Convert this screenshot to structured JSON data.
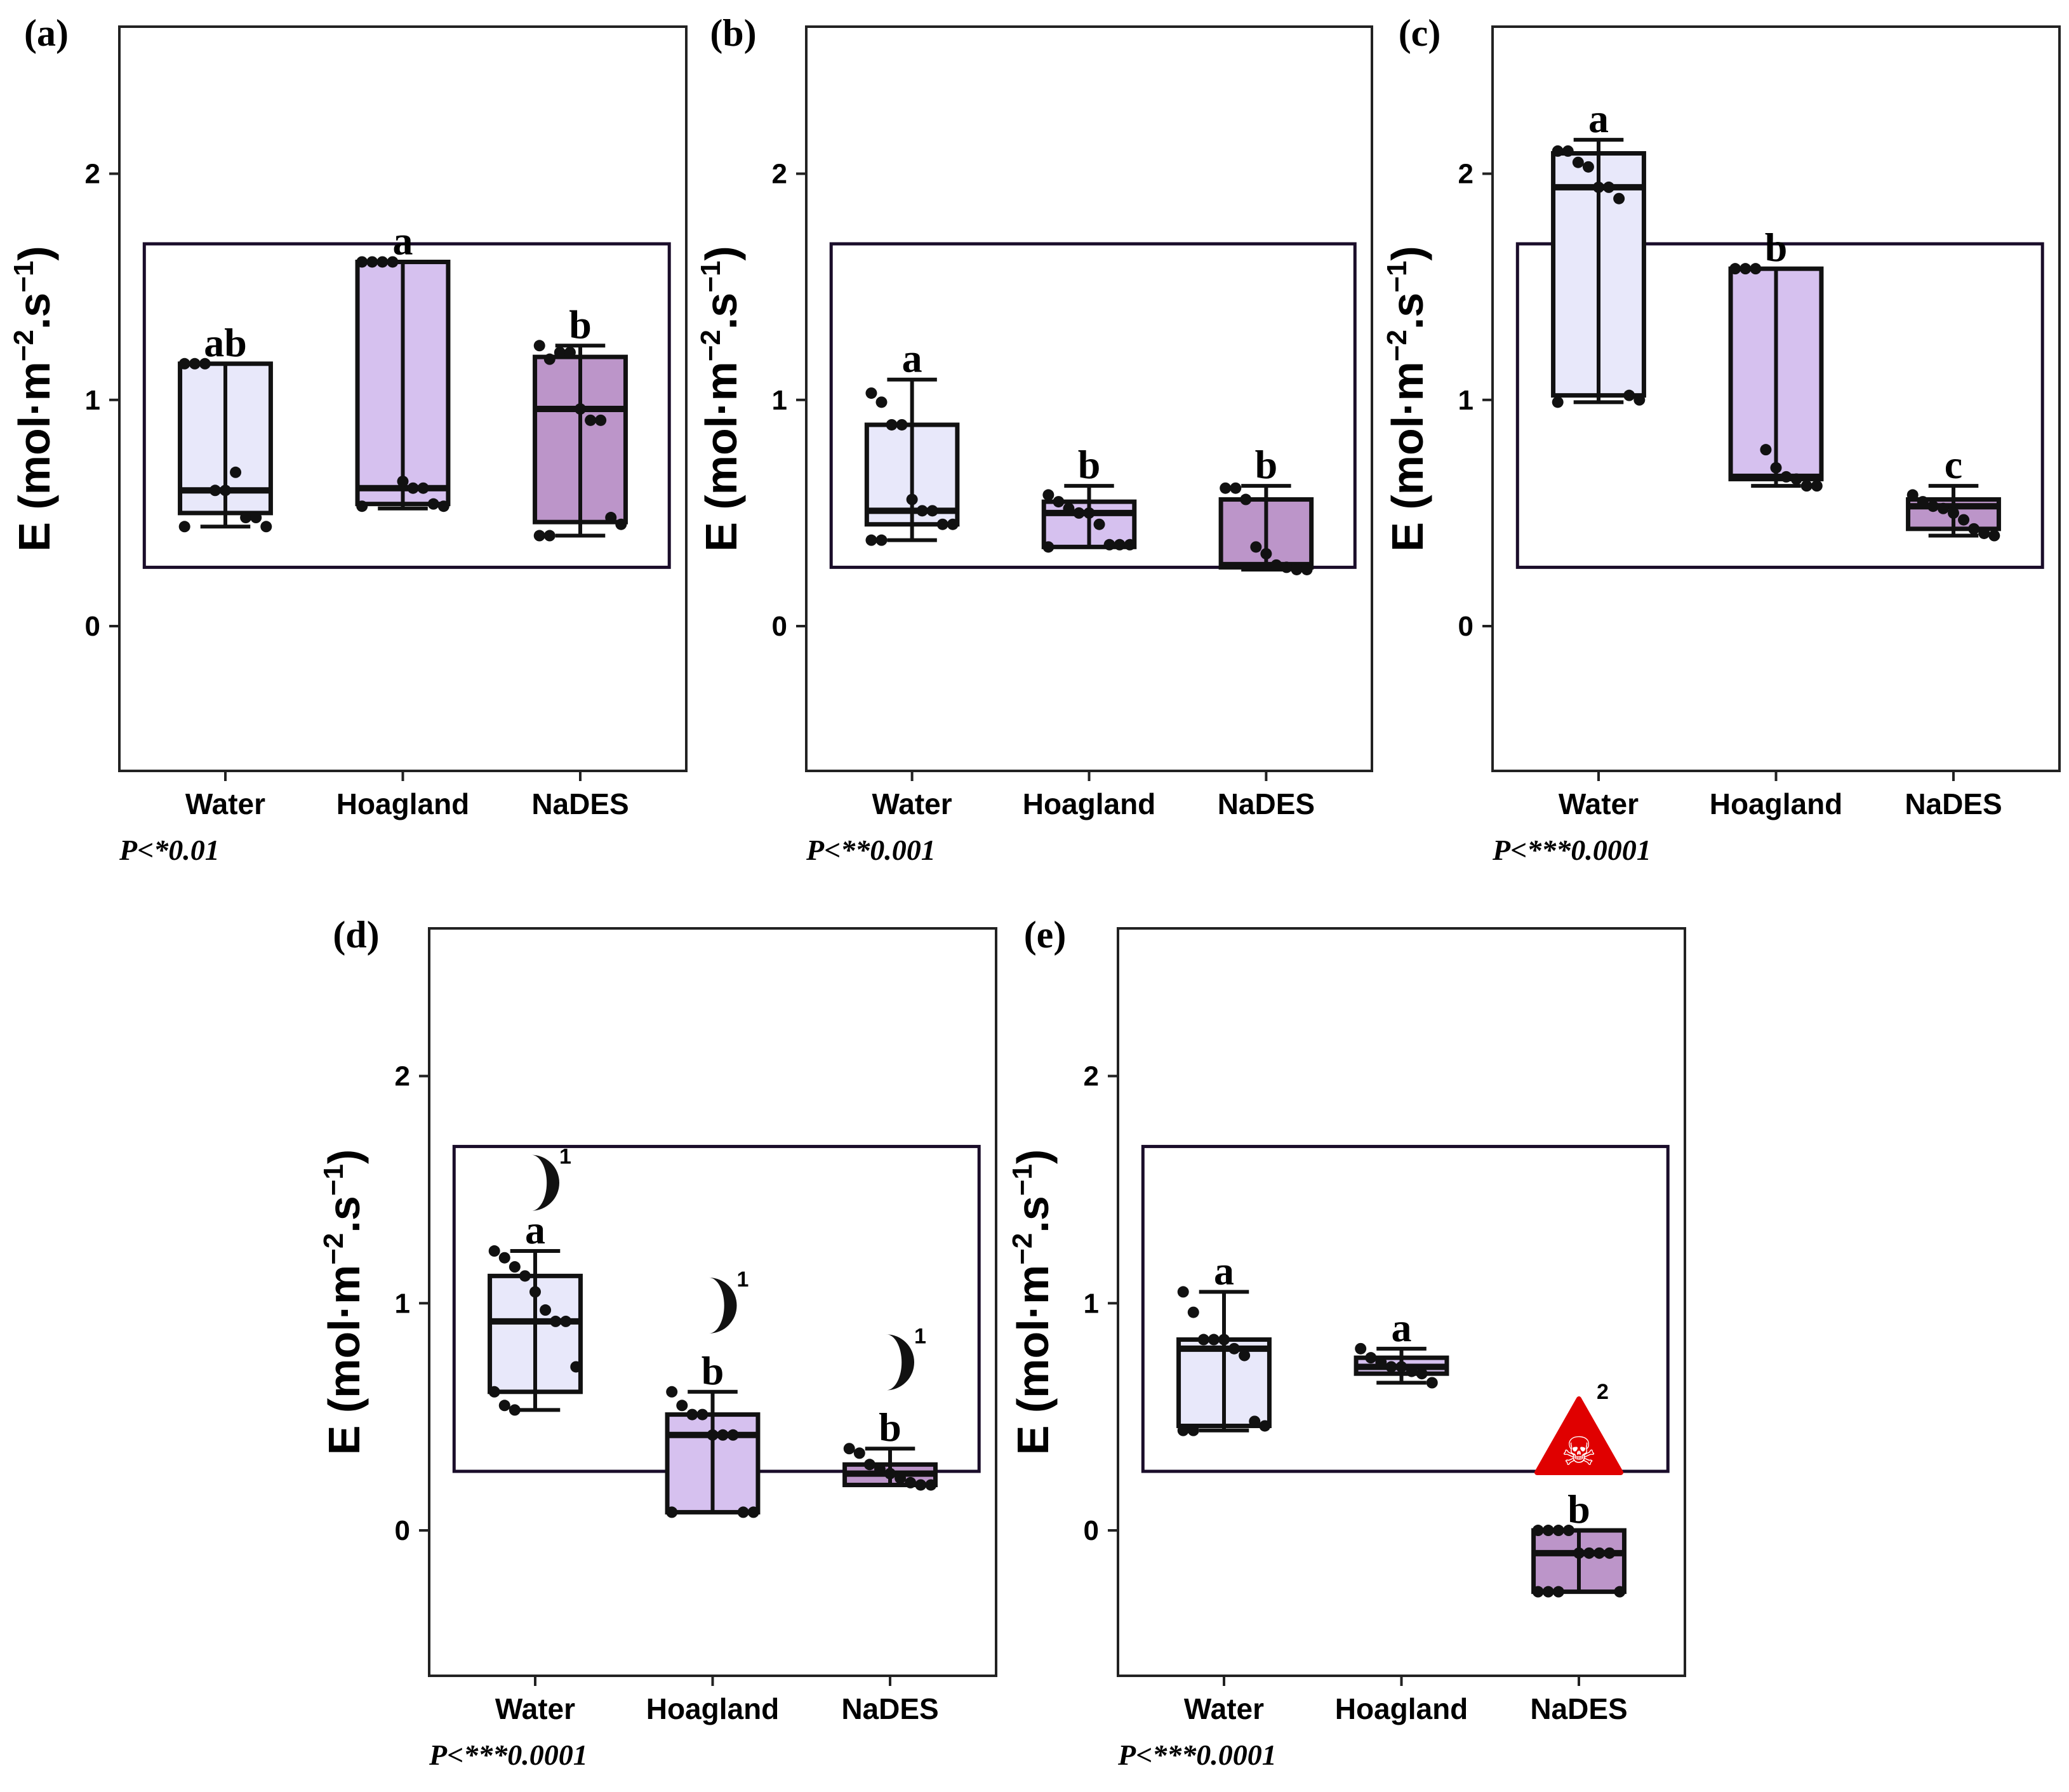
{
  "colors": {
    "Water": "#e8e8fa",
    "Hoagland": "#d6c1ef",
    "NaDES": "#bc95c9",
    "skull": "#e00000"
  },
  "chart_data": [
    {
      "type": "box",
      "label": "(a)",
      "ylabel": {
        "main": "E (mol·m",
        "sup1": "−2",
        "mid": ".s",
        "sup2": "−1",
        "end": ")"
      },
      "ylim": [
        -0.64,
        2.65
      ],
      "yticks": [
        "0",
        "1",
        "2"
      ],
      "categories": [
        "Water",
        "Hoagland",
        "NaDES"
      ],
      "p_value": "P<*0.01",
      "groups": [
        {
          "q1": 0.5,
          "median": 0.6,
          "q3": 1.16,
          "whisker_low": 0.44,
          "whisker_high": 1.16,
          "letter": "ab",
          "points": [
            1.16,
            1.16,
            1.16,
            0.6,
            0.6,
            0.68,
            0.48,
            0.48,
            0.44,
            0.44
          ]
        },
        {
          "q1": 0.54,
          "median": 0.61,
          "q3": 1.61,
          "whisker_low": 0.52,
          "whisker_high": 1.61,
          "letter": "a",
          "points": [
            1.61,
            1.61,
            1.61,
            1.61,
            0.64,
            0.61,
            0.61,
            0.54,
            0.53,
            0.53
          ]
        },
        {
          "q1": 0.46,
          "median": 0.96,
          "q3": 1.19,
          "whisker_low": 0.4,
          "whisker_high": 1.24,
          "letter": "b",
          "points": [
            1.24,
            1.18,
            1.21,
            1.21,
            0.96,
            0.91,
            0.91,
            0.48,
            0.45,
            0.4,
            0.4
          ]
        }
      ]
    },
    {
      "type": "box",
      "label": "(b)",
      "ylim": [
        -0.64,
        2.65
      ],
      "yticks": [
        "0",
        "1",
        "2"
      ],
      "categories": [
        "Water",
        "Hoagland",
        "NaDES"
      ],
      "p_value": "P<**0.001",
      "groups": [
        {
          "q1": 0.45,
          "median": 0.51,
          "q3": 0.89,
          "whisker_low": 0.38,
          "whisker_high": 1.09,
          "letter": "a",
          "points": [
            1.03,
            0.99,
            0.89,
            0.89,
            0.56,
            0.51,
            0.51,
            0.45,
            0.45,
            0.38,
            0.38
          ]
        },
        {
          "q1": 0.35,
          "median": 0.5,
          "q3": 0.55,
          "whisker_low": 0.35,
          "whisker_high": 0.62,
          "letter": "b",
          "points": [
            0.58,
            0.55,
            0.52,
            0.5,
            0.5,
            0.45,
            0.36,
            0.36,
            0.36,
            0.35
          ]
        },
        {
          "q1": 0.26,
          "median": 0.27,
          "q3": 0.56,
          "whisker_low": 0.25,
          "whisker_high": 0.62,
          "letter": "b",
          "points": [
            0.61,
            0.61,
            0.56,
            0.35,
            0.32,
            0.27,
            0.26,
            0.25,
            0.25
          ]
        }
      ]
    },
    {
      "type": "box",
      "label": "(c)",
      "ylim": [
        -0.64,
        2.65
      ],
      "yticks": [
        "0",
        "1",
        "2"
      ],
      "categories": [
        "Water",
        "Hoagland",
        "NaDES"
      ],
      "p_value": "P<***0.0001",
      "groups": [
        {
          "q1": 1.02,
          "median": 1.94,
          "q3": 2.09,
          "whisker_low": 0.99,
          "whisker_high": 2.15,
          "letter": "a",
          "points": [
            2.1,
            2.1,
            2.05,
            2.03,
            1.94,
            1.94,
            1.89,
            1.02,
            1.0,
            0.99
          ]
        },
        {
          "q1": 0.65,
          "median": 0.66,
          "q3": 1.58,
          "whisker_low": 0.62,
          "whisker_high": 1.58,
          "letter": "b",
          "points": [
            1.58,
            1.58,
            1.58,
            0.78,
            0.7,
            0.66,
            0.65,
            0.62,
            0.62
          ]
        },
        {
          "q1": 0.43,
          "median": 0.53,
          "q3": 0.56,
          "whisker_low": 0.4,
          "whisker_high": 0.62,
          "letter": "c",
          "points": [
            0.58,
            0.55,
            0.53,
            0.52,
            0.5,
            0.47,
            0.43,
            0.41,
            0.4
          ]
        }
      ]
    },
    {
      "type": "box",
      "label": "(d)",
      "ylim": [
        -0.64,
        2.65
      ],
      "yticks": [
        "0",
        "1",
        "2"
      ],
      "categories": [
        "Water",
        "Hoagland",
        "NaDES"
      ],
      "p_value": "P<***0.0001",
      "moon_note": "1",
      "groups": [
        {
          "q1": 0.61,
          "median": 0.92,
          "q3": 1.12,
          "whisker_low": 0.53,
          "whisker_high": 1.23,
          "letter": "a",
          "moon": 1.53,
          "points": [
            1.23,
            1.2,
            1.16,
            1.12,
            1.05,
            0.97,
            0.92,
            0.92,
            0.72,
            0.61,
            0.55,
            0.53
          ]
        },
        {
          "q1": 0.08,
          "median": 0.42,
          "q3": 0.51,
          "whisker_low": 0.08,
          "whisker_high": 0.61,
          "letter": "b",
          "moon": 0.99,
          "points": [
            0.61,
            0.55,
            0.51,
            0.51,
            0.42,
            0.42,
            0.42,
            0.08,
            0.08,
            0.08
          ]
        },
        {
          "q1": 0.2,
          "median": 0.25,
          "q3": 0.29,
          "whisker_low": 0.2,
          "whisker_high": 0.36,
          "letter": "b",
          "moon": 0.74,
          "points": [
            0.36,
            0.34,
            0.29,
            0.27,
            0.25,
            0.23,
            0.21,
            0.2,
            0.2
          ]
        }
      ]
    },
    {
      "type": "box",
      "label": "(e)",
      "ylim": [
        -0.64,
        2.65
      ],
      "yticks": [
        "0",
        "1",
        "2"
      ],
      "categories": [
        "Water",
        "Hoagland",
        "NaDES"
      ],
      "p_value": "P<***0.0001",
      "skull_note": "2",
      "groups": [
        {
          "q1": 0.46,
          "median": 0.8,
          "q3": 0.84,
          "whisker_low": 0.44,
          "whisker_high": 1.05,
          "letter": "a",
          "points": [
            1.05,
            0.96,
            0.84,
            0.84,
            0.84,
            0.8,
            0.77,
            0.48,
            0.46,
            0.44,
            0.44
          ]
        },
        {
          "q1": 0.69,
          "median": 0.72,
          "q3": 0.76,
          "whisker_low": 0.65,
          "whisker_high": 0.8,
          "letter": "a",
          "points": [
            0.8,
            0.76,
            0.74,
            0.72,
            0.72,
            0.7,
            0.69,
            0.65
          ]
        },
        {
          "q1": -0.27,
          "median": -0.1,
          "q3": 0.0,
          "whisker_low": -0.27,
          "whisker_high": 0.0,
          "letter": "b",
          "skull": 0.4,
          "points": [
            0.0,
            0.0,
            0.0,
            0.0,
            -0.1,
            -0.1,
            -0.1,
            -0.1,
            -0.27,
            -0.27,
            -0.27,
            -0.27
          ]
        }
      ]
    }
  ],
  "inset_box": {
    "ymin": 0.26,
    "ymax": 1.69
  },
  "skull_glyph": "☠"
}
